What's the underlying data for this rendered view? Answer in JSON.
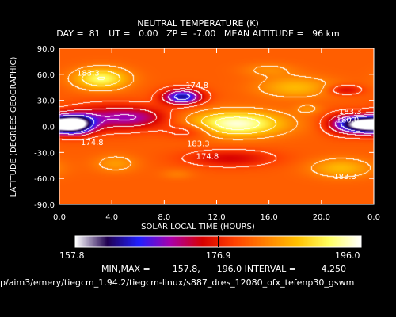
{
  "chart_data": {
    "type": "heatmap",
    "title": "NEUTRAL TEMPERATURE (K)",
    "subtitle": "DAY =  81   UT =   0.00   ZP =  -7.00   MEAN ALTITUDE =   96 km",
    "xlabel": "SOLAR LOCAL TIME (HOURS)",
    "ylabel": "LATITUDE (DEGREES GEOGRAPHIC)",
    "xlim": [
      0,
      24
    ],
    "ylim": [
      -90,
      90
    ],
    "xticks": [
      "0.0",
      "4.0",
      "8.0",
      "12.0",
      "16.0",
      "20.0",
      "0.0"
    ],
    "xtick_values": [
      0,
      4,
      8,
      12,
      16,
      20,
      24
    ],
    "yticks": [
      "90.0",
      "60.0",
      "30.0",
      "0.0",
      "-30.0",
      "-60.0",
      "-90.0"
    ],
    "ytick_values": [
      90,
      60,
      30,
      0,
      -30,
      -60,
      -90
    ],
    "contour_labels": [
      {
        "text": "183.3",
        "x": 2.2,
        "y": 62
      },
      {
        "text": "174.8",
        "x": 10.5,
        "y": 48
      },
      {
        "text": "174.8",
        "x": 2.5,
        "y": -18
      },
      {
        "text": "183.3",
        "x": 10.6,
        "y": -19
      },
      {
        "text": "174.8",
        "x": 11.3,
        "y": -34
      },
      {
        "text": "183.3",
        "x": 21.8,
        "y": -57
      },
      {
        "text": "183.3",
        "x": 22.2,
        "y": 18
      },
      {
        "text": "180.0",
        "x": 22.0,
        "y": 8
      }
    ],
    "field": {
      "base": 181,
      "features": [
        {
          "x": 1.2,
          "y": 2,
          "sx": 1.4,
          "sy": 11,
          "a": -23
        },
        {
          "x": 3.8,
          "y": 10,
          "sx": 3.2,
          "sy": 15,
          "a": -9
        },
        {
          "x": 6.5,
          "y": 10,
          "sx": 2.2,
          "sy": 12,
          "a": -5
        },
        {
          "x": 9.4,
          "y": 34,
          "sx": 1.5,
          "sy": 9,
          "a": -17
        },
        {
          "x": 10.0,
          "y": -5,
          "sx": 1.9,
          "sy": 9,
          "a": -5
        },
        {
          "x": 13.0,
          "y": -37,
          "sx": 3.4,
          "sy": 10,
          "a": -6
        },
        {
          "x": 21.8,
          "y": 42,
          "sx": 1.3,
          "sy": 6,
          "a": -6
        },
        {
          "x": 23.2,
          "y": 2,
          "sx": 1.5,
          "sy": 10,
          "a": -23
        },
        {
          "x": 21.5,
          "y": 3,
          "sx": 1.4,
          "sy": 12,
          "a": -8
        },
        {
          "x": 3.2,
          "y": 55,
          "sx": 2.0,
          "sy": 12,
          "a": 11
        },
        {
          "x": 13.5,
          "y": 3,
          "sx": 3.5,
          "sy": 14,
          "a": 14
        },
        {
          "x": 18.0,
          "y": 45,
          "sx": 2.8,
          "sy": 12,
          "a": 6
        },
        {
          "x": 16.0,
          "y": 65,
          "sx": 2.0,
          "sy": 8,
          "a": 3
        },
        {
          "x": 21.5,
          "y": -48,
          "sx": 2.3,
          "sy": 11,
          "a": 6
        },
        {
          "x": 4.3,
          "y": -43,
          "sx": 1.6,
          "sy": 10,
          "a": 4
        },
        {
          "x": 9.0,
          "y": -55,
          "sx": 1.2,
          "sy": 6,
          "a": 2
        },
        {
          "x": 19.0,
          "y": 20,
          "sx": 1.0,
          "sy": 6,
          "a": 3
        }
      ]
    },
    "colorbar": {
      "min": 157.8,
      "max": 196.0,
      "mid": 176.9,
      "min_label": "157.8",
      "mid_label": "176.9",
      "max_label": "196.0",
      "colors": [
        "#ffffff",
        "#200050",
        "#2020ff",
        "#aa00aa",
        "#d80000",
        "#ff4000",
        "#ff8000",
        "#ffc000",
        "#ffff60",
        "#ffffff"
      ]
    },
    "stats": "MIN,MAX =        157.8,      196.0 INTERVAL =         4.250"
  },
  "file_path": "p/aim3/emery/tiegcm_1.94.2/tiegcm-linux/s887_dres_12080_ofx_tefenp30_gswm"
}
